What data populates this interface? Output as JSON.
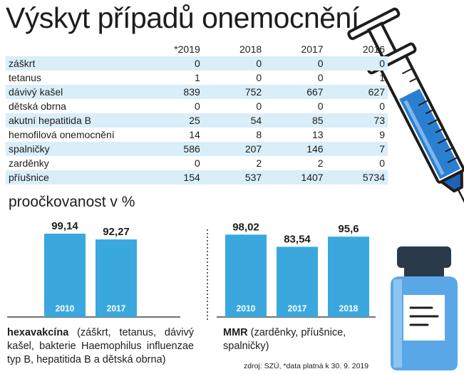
{
  "title": "Výskyt případů onemocnění",
  "cases_table": {
    "headers": [
      "*2019",
      "2018",
      "2017",
      "2016"
    ],
    "rows": [
      {
        "label": "záškrt",
        "values": [
          "0",
          "0",
          "0",
          "0"
        ]
      },
      {
        "label": "tetanus",
        "values": [
          "1",
          "0",
          "0",
          "1"
        ]
      },
      {
        "label": "dávivý kašel",
        "values": [
          "839",
          "752",
          "667",
          "627"
        ]
      },
      {
        "label": "dětská obrna",
        "values": [
          "0",
          "0",
          "0",
          "0"
        ]
      },
      {
        "label": "akutní hepatitida B",
        "values": [
          "25",
          "54",
          "85",
          "73"
        ]
      },
      {
        "label": "hemofilová onemocnění",
        "values": [
          "14",
          "8",
          "13",
          "9"
        ]
      },
      {
        "label": "spalničky",
        "values": [
          "586",
          "207",
          "146",
          "7"
        ]
      },
      {
        "label": "zarděnky",
        "values": [
          "0",
          "2",
          "2",
          "0"
        ]
      },
      {
        "label": "příušnice",
        "values": [
          "154",
          "537",
          "1407",
          "5734"
        ]
      }
    ]
  },
  "vaccination": {
    "heading": "proočkovanost v %",
    "hexa_caption_bold": "hexavakcína",
    "hexa_caption_rest": " (záškrt, tetanus, dávivý kašel, bakterie Haemophilus influenzae typ B, hepatitida B a dětská obrna)",
    "mmr_caption_bold": "MMR",
    "mmr_caption_rest": " (zarděnky, příušnice, spalničky)"
  },
  "source": "zdroj: SZÚ, *data platná k 30. 9. 2019",
  "colors": {
    "bar": "#3aa8de",
    "row_stripe": "#d9eef9",
    "syringe_blue": "#2b7fd0",
    "vial_blue": "#5aa7e8"
  },
  "chart_data": [
    {
      "type": "table",
      "title": "Výskyt případů onemocnění",
      "columns": [
        "*2019",
        "2018",
        "2017",
        "2016"
      ],
      "rows": [
        {
          "label": "záškrt",
          "values": [
            0,
            0,
            0,
            0
          ]
        },
        {
          "label": "tetanus",
          "values": [
            1,
            0,
            0,
            1
          ]
        },
        {
          "label": "dávivý kašel",
          "values": [
            839,
            752,
            667,
            627
          ]
        },
        {
          "label": "dětská obrna",
          "values": [
            0,
            0,
            0,
            0
          ]
        },
        {
          "label": "akutní hepatitida B",
          "values": [
            25,
            54,
            85,
            73
          ]
        },
        {
          "label": "hemofilová onemocnění",
          "values": [
            14,
            8,
            13,
            9
          ]
        },
        {
          "label": "spalničky",
          "values": [
            586,
            207,
            146,
            7
          ]
        },
        {
          "label": "zarděnky",
          "values": [
            0,
            2,
            2,
            0
          ]
        },
        {
          "label": "příušnice",
          "values": [
            154,
            537,
            1407,
            5734
          ]
        }
      ]
    },
    {
      "type": "bar",
      "title": "hexavakcína",
      "categories": [
        "2010",
        "2017"
      ],
      "values": [
        99.14,
        92.27
      ],
      "value_labels": [
        "99,14",
        "92,27"
      ],
      "ylabel": "proočkovanost v %",
      "ylim": [
        0,
        100
      ]
    },
    {
      "type": "bar",
      "title": "MMR",
      "categories": [
        "2010",
        "2017",
        "2018"
      ],
      "values": [
        98.02,
        83.54,
        95.6
      ],
      "value_labels": [
        "98,02",
        "83,54",
        "95,6"
      ],
      "ylabel": "proočkovanost v %",
      "ylim": [
        0,
        100
      ]
    }
  ]
}
